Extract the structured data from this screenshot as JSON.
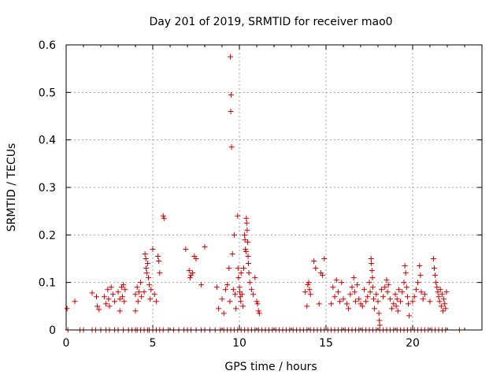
{
  "chart_data": {
    "type": "scatter",
    "title": "Day 201 of 2019, SRMTID for receiver mao0",
    "xlabel": "GPS time / hours",
    "ylabel": "SRMTID / TECUs",
    "xlim": [
      0,
      24
    ],
    "ylim": [
      0,
      0.6
    ],
    "grid": true,
    "marker": "+",
    "color": "#cc0000",
    "x_ticks": [
      0,
      5,
      10,
      15,
      20
    ],
    "x_tick_labels": [
      "0",
      "5",
      "10",
      "15",
      "20"
    ],
    "y_ticks": [
      0,
      0.1,
      0.2,
      0.3,
      0.4,
      0.5,
      0.6
    ],
    "y_tick_labels": [
      "0",
      "0.1",
      "0.2",
      "0.3",
      "0.4",
      "0.5",
      "0.6"
    ],
    "series": [
      {
        "name": "SRMTID",
        "points": [
          [
            0.05,
            0.045
          ],
          [
            0.5,
            0.06
          ],
          [
            1.5,
            0.078
          ],
          [
            1.75,
            0.07
          ],
          [
            1.8,
            0.05
          ],
          [
            1.9,
            0.043
          ],
          [
            2.2,
            0.07
          ],
          [
            2.3,
            0.055
          ],
          [
            2.4,
            0.085
          ],
          [
            2.45,
            0.065
          ],
          [
            2.5,
            0.05
          ],
          [
            2.6,
            0.09
          ],
          [
            2.7,
            0.075
          ],
          [
            2.8,
            0.06
          ],
          [
            3.0,
            0.08
          ],
          [
            3.1,
            0.065
          ],
          [
            3.2,
            0.09
          ],
          [
            3.25,
            0.07
          ],
          [
            3.3,
            0.095
          ],
          [
            3.35,
            0.06
          ],
          [
            3.4,
            0.085
          ],
          [
            3.1,
            0.04
          ],
          [
            4.0,
            0.075
          ],
          [
            4.1,
            0.09
          ],
          [
            4.15,
            0.06
          ],
          [
            4.2,
            0.08
          ],
          [
            4.3,
            0.1
          ],
          [
            4.35,
            0.07
          ],
          [
            4.0,
            0.04
          ],
          [
            4.5,
            0.08
          ],
          [
            4.55,
            0.16
          ],
          [
            4.6,
            0.15
          ],
          [
            4.62,
            0.13
          ],
          [
            4.65,
            0.12
          ],
          [
            4.7,
            0.14
          ],
          [
            4.75,
            0.11
          ],
          [
            4.8,
            0.095
          ],
          [
            4.85,
            0.065
          ],
          [
            4.9,
            0.085
          ],
          [
            5.0,
            0.17
          ],
          [
            5.1,
            0.075
          ],
          [
            5.2,
            0.06
          ],
          [
            5.3,
            0.155
          ],
          [
            5.35,
            0.145
          ],
          [
            5.4,
            0.12
          ],
          [
            5.6,
            0.24
          ],
          [
            5.65,
            0.235
          ],
          [
            6.9,
            0.17
          ],
          [
            7.1,
            0.125
          ],
          [
            7.15,
            0.11
          ],
          [
            7.2,
            0.115
          ],
          [
            7.3,
            0.12
          ],
          [
            7.4,
            0.155
          ],
          [
            7.5,
            0.15
          ],
          [
            7.8,
            0.095
          ],
          [
            8.0,
            0.175
          ],
          [
            8.7,
            0.09
          ],
          [
            8.8,
            0.045
          ],
          [
            9.0,
            0.065
          ],
          [
            9.1,
            0.035
          ],
          [
            9.2,
            0.085
          ],
          [
            9.3,
            0.095
          ],
          [
            9.4,
            0.13
          ],
          [
            9.45,
            0.06
          ],
          [
            9.48,
            0.575
          ],
          [
            9.52,
            0.495
          ],
          [
            9.5,
            0.46
          ],
          [
            9.55,
            0.385
          ],
          [
            9.6,
            0.16
          ],
          [
            9.65,
            0.085
          ],
          [
            9.7,
            0.2
          ],
          [
            9.75,
            0.075
          ],
          [
            9.8,
            0.045
          ],
          [
            9.9,
            0.24
          ],
          [
            9.92,
            0.13
          ],
          [
            9.95,
            0.11
          ],
          [
            10.0,
            0.09
          ],
          [
            10.02,
            0.08
          ],
          [
            10.05,
            0.07
          ],
          [
            10.08,
            0.06
          ],
          [
            10.1,
            0.12
          ],
          [
            10.15,
            0.075
          ],
          [
            10.2,
            0.05
          ],
          [
            10.25,
            0.13
          ],
          [
            10.3,
            0.2
          ],
          [
            10.32,
            0.19
          ],
          [
            10.35,
            0.17
          ],
          [
            10.38,
            0.165
          ],
          [
            10.4,
            0.235
          ],
          [
            10.42,
            0.225
          ],
          [
            10.45,
            0.21
          ],
          [
            10.48,
            0.185
          ],
          [
            10.5,
            0.155
          ],
          [
            10.52,
            0.14
          ],
          [
            10.55,
            0.12
          ],
          [
            10.6,
            0.1
          ],
          [
            10.7,
            0.085
          ],
          [
            10.8,
            0.075
          ],
          [
            10.9,
            0.11
          ],
          [
            11.0,
            0.06
          ],
          [
            11.05,
            0.055
          ],
          [
            11.1,
            0.04
          ],
          [
            11.15,
            0.035
          ],
          [
            13.8,
            0.08
          ],
          [
            13.9,
            0.05
          ],
          [
            13.95,
            0.095
          ],
          [
            14.0,
            0.1
          ],
          [
            14.05,
            0.085
          ],
          [
            14.1,
            0.075
          ],
          [
            14.3,
            0.145
          ],
          [
            14.4,
            0.13
          ],
          [
            14.6,
            0.055
          ],
          [
            14.7,
            0.12
          ],
          [
            14.8,
            0.115
          ],
          [
            14.9,
            0.15
          ],
          [
            15.3,
            0.055
          ],
          [
            15.4,
            0.09
          ],
          [
            15.5,
            0.07
          ],
          [
            15.6,
            0.105
          ],
          [
            15.7,
            0.08
          ],
          [
            15.8,
            0.06
          ],
          [
            15.9,
            0.1
          ],
          [
            16.0,
            0.065
          ],
          [
            16.2,
            0.055
          ],
          [
            16.3,
            0.045
          ],
          [
            16.4,
            0.075
          ],
          [
            16.5,
            0.09
          ],
          [
            16.6,
            0.11
          ],
          [
            16.65,
            0.08
          ],
          [
            16.7,
            0.06
          ],
          [
            16.8,
            0.095
          ],
          [
            16.9,
            0.065
          ],
          [
            17.0,
            0.055
          ],
          [
            17.1,
            0.05
          ],
          [
            17.2,
            0.085
          ],
          [
            17.3,
            0.06
          ],
          [
            17.4,
            0.07
          ],
          [
            17.5,
            0.1
          ],
          [
            17.55,
            0.08
          ],
          [
            17.6,
            0.15
          ],
          [
            17.62,
            0.14
          ],
          [
            17.65,
            0.125
          ],
          [
            17.68,
            0.11
          ],
          [
            17.7,
            0.09
          ],
          [
            17.75,
            0.065
          ],
          [
            17.8,
            0.045
          ],
          [
            17.9,
            0.075
          ],
          [
            18.0,
            0.06
          ],
          [
            18.05,
            0.035
          ],
          [
            18.08,
            0.02
          ],
          [
            18.1,
            0.01
          ],
          [
            18.2,
            0.085
          ],
          [
            18.3,
            0.07
          ],
          [
            18.4,
            0.09
          ],
          [
            18.5,
            0.105
          ],
          [
            18.55,
            0.08
          ],
          [
            18.6,
            0.095
          ],
          [
            18.7,
            0.065
          ],
          [
            18.8,
            0.045
          ],
          [
            18.9,
            0.055
          ],
          [
            19.0,
            0.075
          ],
          [
            19.05,
            0.05
          ],
          [
            19.1,
            0.065
          ],
          [
            19.15,
            0.04
          ],
          [
            19.2,
            0.085
          ],
          [
            19.3,
            0.06
          ],
          [
            19.4,
            0.08
          ],
          [
            19.5,
            0.1
          ],
          [
            19.55,
            0.135
          ],
          [
            19.6,
            0.12
          ],
          [
            19.65,
            0.09
          ],
          [
            19.7,
            0.07
          ],
          [
            19.75,
            0.055
          ],
          [
            19.8,
            0.03
          ],
          [
            20.0,
            0.06
          ],
          [
            20.1,
            0.07
          ],
          [
            20.2,
            0.085
          ],
          [
            20.3,
            0.1
          ],
          [
            20.4,
            0.135
          ],
          [
            20.45,
            0.115
          ],
          [
            20.5,
            0.08
          ],
          [
            20.6,
            0.065
          ],
          [
            20.7,
            0.075
          ],
          [
            21.0,
            0.06
          ],
          [
            21.2,
            0.15
          ],
          [
            21.25,
            0.13
          ],
          [
            21.3,
            0.115
          ],
          [
            21.35,
            0.1
          ],
          [
            21.4,
            0.09
          ],
          [
            21.45,
            0.08
          ],
          [
            21.5,
            0.07
          ],
          [
            21.55,
            0.06
          ],
          [
            21.6,
            0.085
          ],
          [
            21.65,
            0.05
          ],
          [
            21.7,
            0.075
          ],
          [
            21.75,
            0.04
          ],
          [
            21.8,
            0.065
          ],
          [
            21.85,
            0.055
          ],
          [
            21.9,
            0.045
          ],
          [
            21.95,
            0.08
          ]
        ],
        "zero_x": [
          0.1,
          0.8,
          1.0,
          1.5,
          1.7,
          2.0,
          2.3,
          2.5,
          2.8,
          3.0,
          3.3,
          3.6,
          3.8,
          4.0,
          4.1,
          4.3,
          4.5,
          4.7,
          4.8,
          5.0,
          5.2,
          5.4,
          5.6,
          5.9,
          6.2,
          6.5,
          6.8,
          7.0,
          7.2,
          7.5,
          7.8,
          8.0,
          8.3,
          8.6,
          8.9,
          9.1,
          9.3,
          9.5,
          9.7,
          9.9,
          10.1,
          10.3,
          10.5,
          10.7,
          10.9,
          11.1,
          11.3,
          11.5,
          11.7,
          11.9,
          12.1,
          12.3,
          12.5,
          12.7,
          12.9,
          13.1,
          13.3,
          13.5,
          13.7,
          13.9,
          14.1,
          14.3,
          14.5,
          14.7,
          14.9,
          15.1,
          15.3,
          15.5,
          15.7,
          15.9,
          16.1,
          16.3,
          16.5,
          16.7,
          16.9,
          17.1,
          17.3,
          17.5,
          17.7,
          17.9,
          18.1,
          18.3,
          18.5,
          18.7,
          18.9,
          19.1,
          19.3,
          19.5,
          19.7,
          19.9,
          20.1,
          20.3,
          20.5,
          20.7,
          20.9,
          21.1,
          21.3,
          21.5,
          21.7,
          21.9,
          22.7
        ]
      }
    ]
  }
}
